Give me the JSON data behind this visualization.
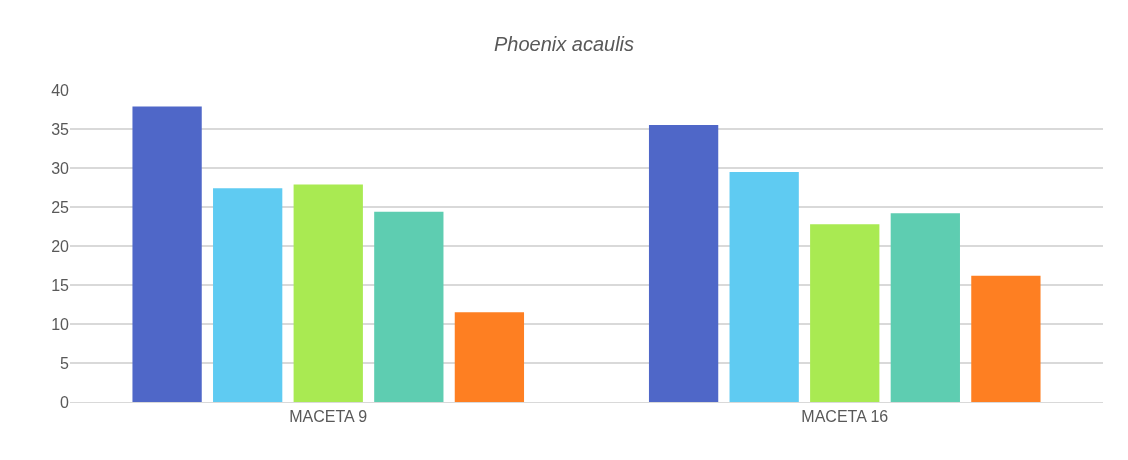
{
  "chart_data": {
    "type": "bar",
    "title": "Phoenix acaulis",
    "categories": [
      "MACETA 9",
      "MACETA 16"
    ],
    "series": [
      {
        "color": "#4f67c8",
        "values": [
          37.9,
          35.5
        ]
      },
      {
        "color": "#5fcbf2",
        "values": [
          27.4,
          29.5
        ]
      },
      {
        "color": "#a9ea52",
        "values": [
          27.9,
          22.8
        ]
      },
      {
        "color": "#5ecdb1",
        "values": [
          24.4,
          24.2
        ]
      },
      {
        "color": "#fe7f22",
        "values": [
          11.5,
          16.2
        ]
      }
    ],
    "ylim": [
      0,
      40
    ],
    "yticks": [
      0,
      5,
      10,
      15,
      20,
      25,
      30,
      35,
      40
    ],
    "grid": "y"
  }
}
